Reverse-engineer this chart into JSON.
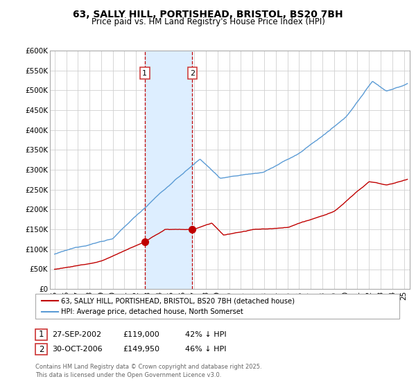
{
  "title": "63, SALLY HILL, PORTISHEAD, BRISTOL, BS20 7BH",
  "subtitle": "Price paid vs. HM Land Registry's House Price Index (HPI)",
  "ylabel_ticks": [
    "£0",
    "£50K",
    "£100K",
    "£150K",
    "£200K",
    "£250K",
    "£300K",
    "£350K",
    "£400K",
    "£450K",
    "£500K",
    "£550K",
    "£600K"
  ],
  "ytick_values": [
    0,
    50000,
    100000,
    150000,
    200000,
    250000,
    300000,
    350000,
    400000,
    450000,
    500000,
    550000,
    600000
  ],
  "ylim": [
    0,
    600000
  ],
  "xlim_start": 1994.6,
  "xlim_end": 2025.5,
  "hpi_color": "#5b9bd5",
  "sale_color": "#c00000",
  "sale1_x": 2002.74,
  "sale1_y": 119000,
  "sale2_x": 2006.83,
  "sale2_y": 149950,
  "sale1_label": "1",
  "sale2_label": "2",
  "legend_line1": "63, SALLY HILL, PORTISHEAD, BRISTOL, BS20 7BH (detached house)",
  "legend_line2": "HPI: Average price, detached house, North Somerset",
  "annotation1_date": "27-SEP-2002",
  "annotation1_price": "£119,000",
  "annotation1_hpi": "42% ↓ HPI",
  "annotation2_date": "30-OCT-2006",
  "annotation2_price": "£149,950",
  "annotation2_hpi": "46% ↓ HPI",
  "footer": "Contains HM Land Registry data © Crown copyright and database right 2025.\nThis data is licensed under the Open Government Licence v3.0.",
  "background_color": "#ffffff",
  "grid_color": "#d0d0d0",
  "shaded_region_color": "#ddeeff",
  "shaded_x1": 2002.74,
  "shaded_x2": 2006.83
}
